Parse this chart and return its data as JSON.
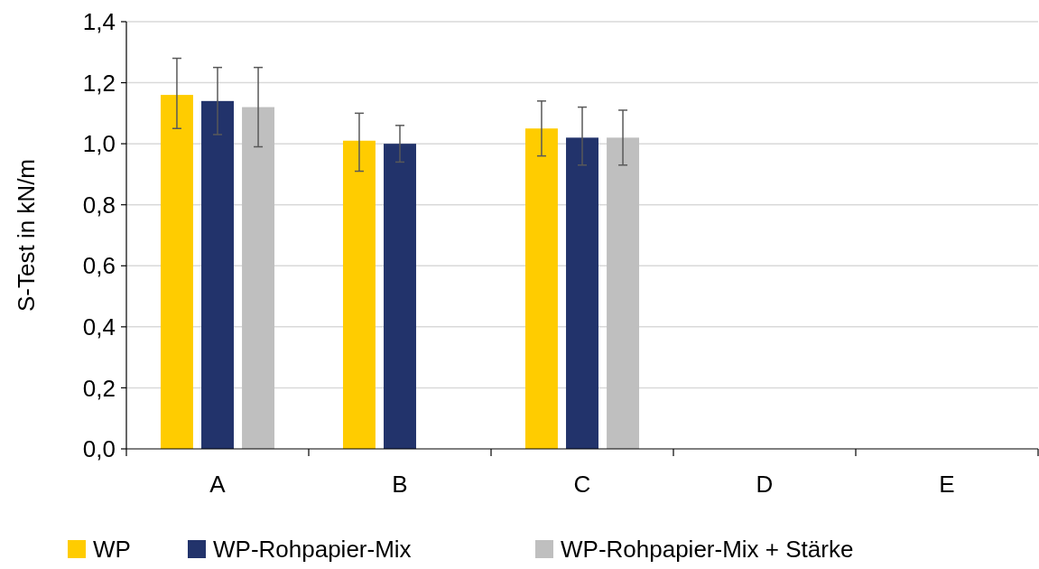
{
  "chart_data": {
    "type": "bar",
    "ylabel": "S-Test in kN/m",
    "categories": [
      "A",
      "B",
      "C",
      "D",
      "E"
    ],
    "series": [
      {
        "name": "WP",
        "color": "#ffcc00",
        "values": [
          1.16,
          1.01,
          1.05,
          null,
          null
        ],
        "errors": [
          [
            1.05,
            1.28
          ],
          [
            0.91,
            1.1
          ],
          [
            0.96,
            1.14
          ],
          null,
          null
        ]
      },
      {
        "name": "WP-Rohpapier-Mix",
        "color": "#22336b",
        "values": [
          1.14,
          1.0,
          1.02,
          null,
          null
        ],
        "errors": [
          [
            1.03,
            1.25
          ],
          [
            0.94,
            1.06
          ],
          [
            0.93,
            1.12
          ],
          null,
          null
        ]
      },
      {
        "name": "WP-Rohpapier-Mix + Stärke",
        "color": "#bfbfbf",
        "values": [
          1.12,
          null,
          1.02,
          null,
          null
        ],
        "errors": [
          [
            0.99,
            1.25
          ],
          null,
          [
            0.93,
            1.11
          ],
          null,
          null
        ]
      }
    ],
    "ylim": [
      0,
      1.4
    ],
    "yticks": [
      {
        "value": 0,
        "label": "0,0"
      },
      {
        "value": 0.2,
        "label": "0,2"
      },
      {
        "value": 0.4,
        "label": "0,4"
      },
      {
        "value": 0.6,
        "label": "0,6"
      },
      {
        "value": 0.8,
        "label": "0,8"
      },
      {
        "value": 1,
        "label": "1,0"
      },
      {
        "value": 1.2,
        "label": "1,2"
      },
      {
        "value": 1.4,
        "label": "1,4"
      }
    ],
    "grid": "y",
    "legend": "bottom"
  }
}
